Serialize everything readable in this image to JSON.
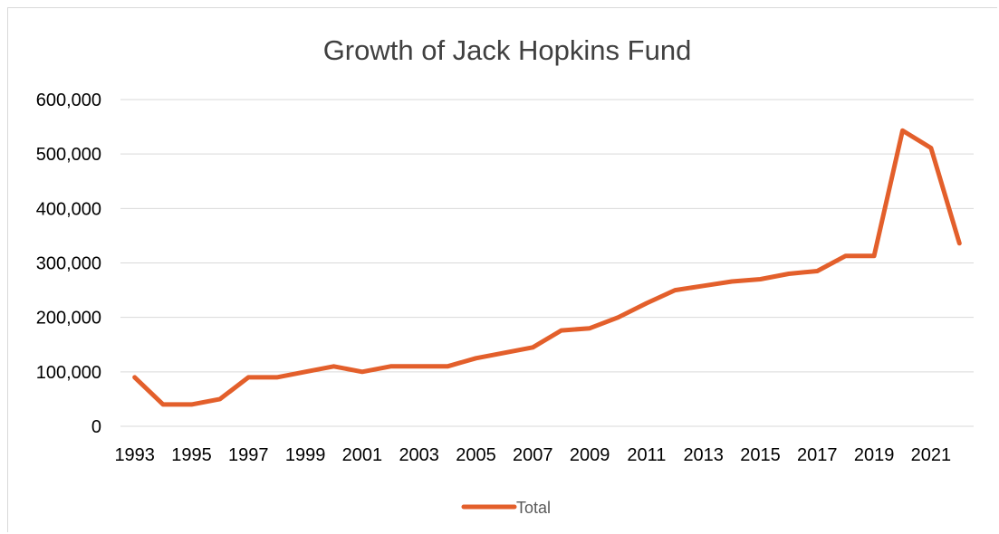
{
  "chart_data": {
    "type": "line",
    "title": "Growth of Jack Hopkins Fund",
    "xlabel": "",
    "ylabel": "",
    "x": [
      1993,
      1994,
      1995,
      1996,
      1997,
      1998,
      1999,
      2000,
      2001,
      2002,
      2003,
      2004,
      2005,
      2006,
      2007,
      2008,
      2009,
      2010,
      2011,
      2012,
      2013,
      2014,
      2015,
      2016,
      2017,
      2018,
      2019,
      2020,
      2021,
      2022
    ],
    "x_tick_labels": [
      "1993",
      "1995",
      "1997",
      "1999",
      "2001",
      "2003",
      "2005",
      "2007",
      "2009",
      "2011",
      "2013",
      "2015",
      "2017",
      "2019",
      "2021"
    ],
    "y_tick_labels": [
      "0",
      "100,000",
      "200,000",
      "300,000",
      "400,000",
      "500,000",
      "600,000"
    ],
    "ylim": [
      0,
      600000
    ],
    "grid": true,
    "legend_position": "bottom",
    "series": [
      {
        "name": "Total",
        "color": "#e35f2b",
        "values": [
          90000,
          40000,
          40000,
          50000,
          90000,
          90000,
          100000,
          110000,
          100000,
          110000,
          110000,
          110000,
          125000,
          135000,
          145000,
          176000,
          180000,
          200000,
          226000,
          250000,
          258000,
          266000,
          270000,
          280000,
          285000,
          313000,
          313000,
          543000,
          511000,
          336000
        ]
      }
    ]
  }
}
